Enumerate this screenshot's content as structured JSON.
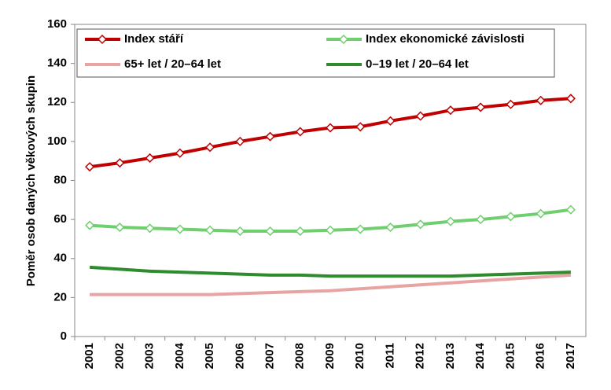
{
  "chart_data": {
    "type": "line",
    "y_label": "Poměr osob daných věkových skupin",
    "categories": [
      "2001",
      "2002",
      "2003",
      "2004",
      "2005",
      "2006",
      "2007",
      "2008",
      "2009",
      "2010",
      "2011",
      "2012",
      "2013",
      "2014",
      "2015",
      "2016",
      "2017"
    ],
    "series": [
      {
        "name": "Index stáří",
        "color": "#c00000",
        "marker": "diamond",
        "values": [
          87,
          89,
          91.5,
          94,
          97,
          100,
          102.5,
          105,
          107,
          107.5,
          110.5,
          113,
          116,
          117.5,
          119,
          121,
          122
        ]
      },
      {
        "name": "Index ekonomické závislosti",
        "color": "#6fcf6f",
        "marker": "diamond",
        "values": [
          57,
          56,
          55.5,
          55,
          54.5,
          54,
          54,
          54,
          54.5,
          55,
          56,
          57.5,
          59,
          60,
          61.5,
          63,
          65
        ]
      },
      {
        "name": "65+ let / 20–64 let",
        "color": "#e8a3a3",
        "values": [
          21.5,
          21.5,
          21.5,
          21.5,
          21.5,
          22,
          22.5,
          23,
          23.5,
          24.5,
          25.5,
          26.5,
          27.5,
          28.5,
          29.5,
          30.5,
          31.5
        ]
      },
      {
        "name": "0–19 let / 20–64 let",
        "color": "#2e8b2e",
        "values": [
          35.5,
          34.5,
          33.5,
          33,
          32.5,
          32,
          31.5,
          31.5,
          31,
          31,
          31,
          31,
          31,
          31.5,
          32,
          32.5,
          33
        ]
      }
    ],
    "ylim": [
      0,
      160
    ],
    "yticks": [
      0,
      20,
      40,
      60,
      80,
      100,
      120,
      140,
      160
    ],
    "legend": "top"
  }
}
